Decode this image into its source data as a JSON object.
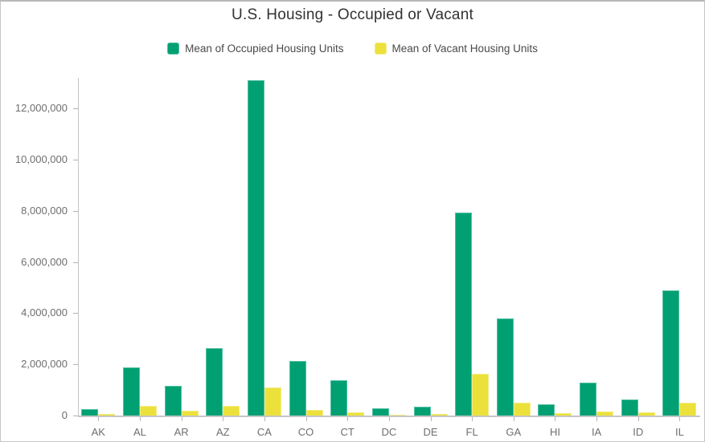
{
  "title": "U.S. Housing - Occupied or Vacant",
  "legend": [
    {
      "key": "occupied",
      "label": "Mean of Occupied Housing Units",
      "color": "#00A073",
      "border": "#53c0a1"
    },
    {
      "key": "vacant",
      "label": "Mean of Vacant Housing Units",
      "color": "#ECE13B",
      "border": "#f3eb84"
    }
  ],
  "chart_data": {
    "type": "bar",
    "title": "U.S. Housing - Occupied or Vacant",
    "xlabel": "",
    "ylabel": "",
    "categories": [
      "AK",
      "AL",
      "AR",
      "AZ",
      "CA",
      "CO",
      "CT",
      "DC",
      "DE",
      "FL",
      "GA",
      "HI",
      "IA",
      "ID",
      "IL"
    ],
    "series": [
      {
        "name": "Mean of Occupied Housing Units",
        "key": "occupied",
        "color": "#00A073",
        "border": "#53c0a1",
        "values": [
          240000,
          1870000,
          1150000,
          2620000,
          13100000,
          2130000,
          1390000,
          270000,
          360000,
          7930000,
          3800000,
          450000,
          1280000,
          620000,
          4890000
        ]
      },
      {
        "name": "Mean of Vacant Housing Units",
        "key": "vacant",
        "color": "#ECE13B",
        "border": "#f3eb84",
        "values": [
          50000,
          370000,
          200000,
          380000,
          1100000,
          220000,
          130000,
          40000,
          70000,
          1620000,
          490000,
          80000,
          150000,
          110000,
          490000
        ]
      }
    ],
    "ylim": [
      0,
      13200000
    ],
    "y_ticks": [
      0,
      2000000,
      4000000,
      6000000,
      8000000,
      10000000,
      12000000
    ],
    "y_tick_labels": [
      "0",
      "2,000,000",
      "4,000,000",
      "6,000,000",
      "8,000,000",
      "10,000,000",
      "12,000,000"
    ],
    "grid": false,
    "legend_position": "top"
  },
  "colors": {
    "background": "#ffffff",
    "frame_border": "#c6c6c6",
    "axis_line": "#c6c6c6",
    "tick_mark": "#b3b3b3",
    "tick_label": "#6e6e6e",
    "title_text": "#323232",
    "legend_text": "#4a4a4a"
  }
}
